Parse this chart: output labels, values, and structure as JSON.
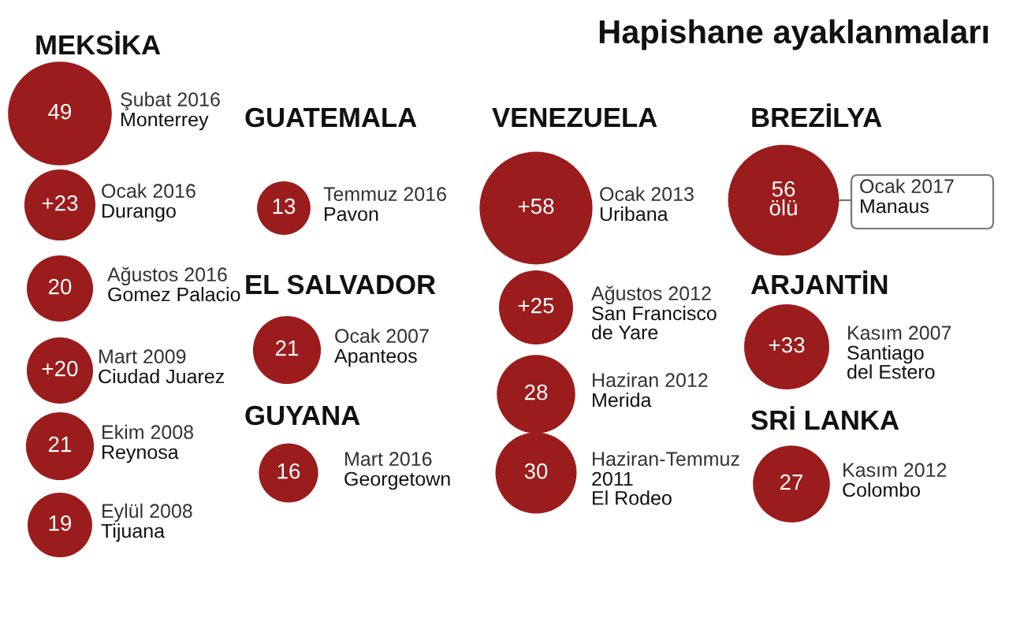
{
  "chart_data": {
    "type": "other",
    "title": "Hapishane ayaklanmaları",
    "categories": [
      "Şubat 2016\nMonterrey",
      "Ocak 2016\nDurango",
      "Ağustos 2016\nGomez Palacio",
      "Mart 2009\nCiudad Juarez",
      "Ekim 2008\nReynosa",
      "Eylül 2008\nTijuana",
      "Temmuz 2016\nPavon",
      "Ocak 2007\nApanteos",
      "Mart 2016\nGeorgetown",
      "Ocak 2013\nUribana",
      "Ağustos 2012\nSan Francisco\nde Yare",
      "Haziran 2012\nMerida",
      "Haziran-Temmuz\n2011\nEl Rodeo",
      "Ocak 2017\nManaus",
      "Kasım 2007\nSantiago\ndel Estero",
      "Kasım 2012\nColombo"
    ],
    "series": [
      {
        "name": "MEKSİKA",
        "color": "#9b1c1c",
        "values": [
          49,
          23,
          20,
          20,
          21,
          19,
          null,
          null,
          null,
          null,
          null,
          null,
          null,
          null,
          null,
          null
        ],
        "value_labels": [
          "49",
          "+23",
          "20",
          "+20",
          "21",
          "19",
          null,
          null,
          null,
          null,
          null,
          null,
          null,
          null,
          null,
          null
        ]
      },
      {
        "name": "GUATEMALA",
        "color": "#9b1c1c",
        "values": [
          null,
          null,
          null,
          null,
          null,
          null,
          13,
          null,
          null,
          null,
          null,
          null,
          null,
          null,
          null,
          null
        ],
        "value_labels": [
          null,
          null,
          null,
          null,
          null,
          null,
          "13",
          null,
          null,
          null,
          null,
          null,
          null,
          null,
          null,
          null
        ]
      },
      {
        "name": "EL SALVADOR",
        "color": "#9b1c1c",
        "values": [
          null,
          null,
          null,
          null,
          null,
          null,
          null,
          21,
          null,
          null,
          null,
          null,
          null,
          null,
          null,
          null
        ],
        "value_labels": [
          null,
          null,
          null,
          null,
          null,
          null,
          null,
          "21",
          null,
          null,
          null,
          null,
          null,
          null,
          null,
          null
        ]
      },
      {
        "name": "GUYANA",
        "color": "#9b1c1c",
        "values": [
          null,
          null,
          null,
          null,
          null,
          null,
          null,
          null,
          16,
          null,
          null,
          null,
          null,
          null,
          null,
          null
        ],
        "value_labels": [
          null,
          null,
          null,
          null,
          null,
          null,
          null,
          null,
          "16",
          null,
          null,
          null,
          null,
          null,
          null,
          null
        ]
      },
      {
        "name": "VENEZUELA",
        "color": "#9b1c1c",
        "values": [
          null,
          null,
          null,
          null,
          null,
          null,
          null,
          null,
          null,
          58,
          25,
          28,
          30,
          null,
          null,
          null
        ],
        "value_labels": [
          null,
          null,
          null,
          null,
          null,
          null,
          null,
          null,
          null,
          "+58",
          "+25",
          "28",
          "30",
          null,
          null,
          null
        ]
      },
      {
        "name": "BREZİLYA",
        "color": "#9b1c1c",
        "values": [
          null,
          null,
          null,
          null,
          null,
          null,
          null,
          null,
          null,
          null,
          null,
          null,
          null,
          56,
          null,
          null
        ],
        "value_labels": [
          null,
          null,
          null,
          null,
          null,
          null,
          null,
          null,
          null,
          null,
          null,
          null,
          null,
          "56\nölü",
          null,
          null
        ]
      },
      {
        "name": "ARJANTİN",
        "color": "#9b1c1c",
        "values": [
          null,
          null,
          null,
          null,
          null,
          null,
          null,
          null,
          null,
          null,
          null,
          null,
          null,
          null,
          33,
          null
        ],
        "value_labels": [
          null,
          null,
          null,
          null,
          null,
          null,
          null,
          null,
          null,
          null,
          null,
          null,
          null,
          null,
          "+33",
          null
        ]
      },
      {
        "name": "SRİ LANKA",
        "color": "#9b1c1c",
        "values": [
          null,
          null,
          null,
          null,
          null,
          null,
          null,
          null,
          null,
          null,
          null,
          null,
          null,
          null,
          null,
          27
        ],
        "value_labels": [
          null,
          null,
          null,
          null,
          null,
          null,
          null,
          null,
          null,
          null,
          null,
          null,
          null,
          null,
          null,
          "27"
        ]
      }
    ]
  }
}
